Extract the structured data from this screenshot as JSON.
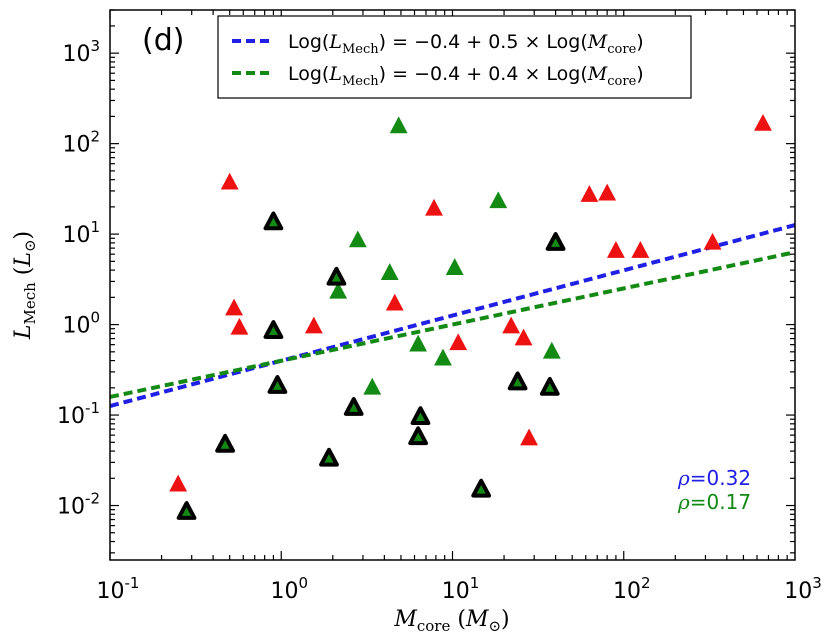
{
  "chart_data": {
    "type": "scatter",
    "panel_label": "(d)",
    "xlabel": {
      "symbol": "M",
      "sub": "core",
      "unit_open": " (",
      "unit_symbol": "M",
      "unit_sub": "⊙",
      "unit_close": ")"
    },
    "ylabel": {
      "symbol": "L",
      "sub": "Mech",
      "unit_open": " (",
      "unit_symbol": "L",
      "unit_sub": "⊙",
      "unit_close": ")"
    },
    "xscale": "log",
    "yscale": "log",
    "xlim": [
      0.1,
      1000
    ],
    "ylim": [
      0.0025,
      3000
    ],
    "x_ticks": [
      {
        "value": 0.1,
        "base": "10",
        "exp": "-1"
      },
      {
        "value": 1,
        "base": "10",
        "exp": "0"
      },
      {
        "value": 10,
        "base": "10",
        "exp": "1"
      },
      {
        "value": 100,
        "base": "10",
        "exp": "2"
      },
      {
        "value": 1000,
        "base": "10",
        "exp": "3"
      }
    ],
    "y_ticks": [
      {
        "value": 0.01,
        "base": "10",
        "exp": "-2"
      },
      {
        "value": 0.1,
        "base": "10",
        "exp": "-1"
      },
      {
        "value": 1,
        "base": "10",
        "exp": "0"
      },
      {
        "value": 10,
        "base": "10",
        "exp": "1"
      },
      {
        "value": 100,
        "base": "10",
        "exp": "2"
      },
      {
        "value": 1000,
        "base": "10",
        "exp": "3"
      }
    ],
    "legend": {
      "position": "top-center",
      "entries": [
        {
          "color": "#1f1fe6",
          "text_pre": "Log(",
          "sym": "L",
          "sub": "Mech",
          "text_mid": ") = −0.4 + 0.5 × Log(",
          "sym2": "M",
          "sub2": "core",
          "text_post": ")"
        },
        {
          "color": "#138a13",
          "text_pre": "Log(",
          "sym": "L",
          "sub": "Mech",
          "text_mid": ") = −0.4 + 0.4 × Log(",
          "sym2": "M",
          "sub2": "core",
          "text_post": ")"
        }
      ]
    },
    "fit_lines": [
      {
        "name": "fit-0.5",
        "color": "#1f1fe6",
        "intercept": -0.4,
        "slope": 0.5
      },
      {
        "name": "fit-0.4",
        "color": "#138a13",
        "intercept": -0.4,
        "slope": 0.4
      }
    ],
    "correlations": [
      {
        "symbol": "ρ",
        "text": "=0.32",
        "color": "#1f1fe6"
      },
      {
        "symbol": "ρ",
        "text": "=0.17",
        "color": "#138a13"
      }
    ],
    "series": [
      {
        "name": "red",
        "color": "#ee1111",
        "outlined": false,
        "points": [
          [
            0.25,
            0.017
          ],
          [
            0.5,
            37
          ],
          [
            0.53,
            1.5
          ],
          [
            0.57,
            0.92
          ],
          [
            1.55,
            0.95
          ],
          [
            4.6,
            1.7
          ],
          [
            7.8,
            19
          ],
          [
            10.8,
            0.62
          ],
          [
            22,
            0.95
          ],
          [
            26,
            0.7
          ],
          [
            28,
            0.055
          ],
          [
            63,
            27
          ],
          [
            80,
            28
          ],
          [
            90,
            6.5
          ],
          [
            125,
            6.5
          ],
          [
            330,
            8
          ],
          [
            650,
            165
          ]
        ]
      },
      {
        "name": "green",
        "color": "#138a13",
        "outlined": false,
        "points": [
          [
            2.15,
            2.3
          ],
          [
            2.8,
            8.5
          ],
          [
            3.4,
            0.2
          ],
          [
            4.3,
            3.7
          ],
          [
            4.85,
            155
          ],
          [
            6.3,
            0.6
          ],
          [
            8.8,
            0.42
          ],
          [
            10.3,
            4.2
          ],
          [
            18.5,
            23
          ],
          [
            38,
            0.5
          ]
        ]
      },
      {
        "name": "green-outlined",
        "color": "#138a13",
        "outlined": true,
        "points": [
          [
            0.28,
            0.0085
          ],
          [
            0.47,
            0.047
          ],
          [
            0.9,
            13.5
          ],
          [
            0.9,
            0.85
          ],
          [
            0.95,
            0.21
          ],
          [
            1.9,
            0.033
          ],
          [
            2.1,
            3.3
          ],
          [
            2.65,
            0.12
          ],
          [
            6.3,
            0.057
          ],
          [
            6.5,
            0.095
          ],
          [
            14.7,
            0.015
          ],
          [
            24,
            0.23
          ],
          [
            37,
            0.2
          ],
          [
            40,
            8
          ]
        ]
      }
    ]
  }
}
